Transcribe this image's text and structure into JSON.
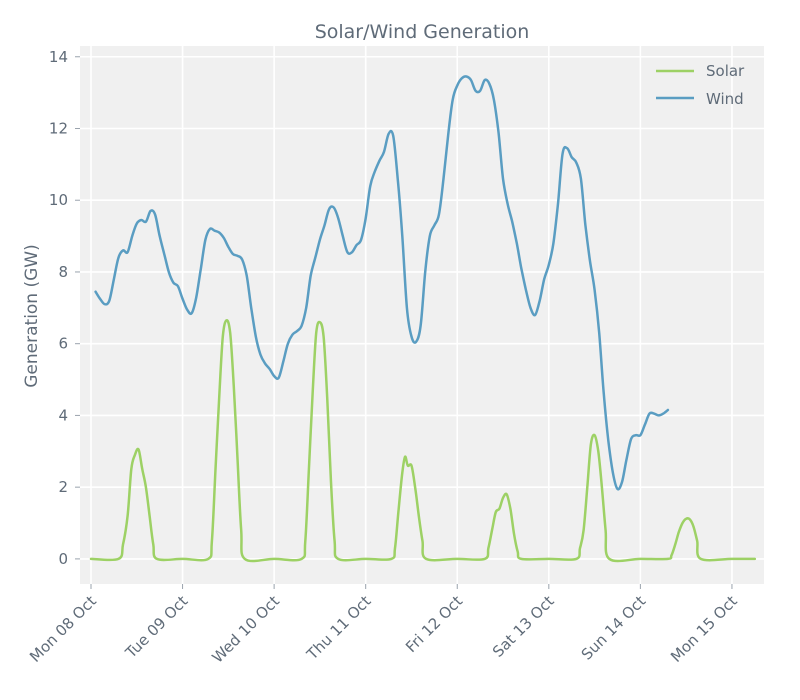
{
  "chart_data": {
    "type": "line",
    "title": "Solar/Wind Generation",
    "xlabel": "",
    "ylabel": "Generation (GW)",
    "ylim": [
      -0.7,
      14.3
    ],
    "yticks": [
      0,
      2,
      4,
      6,
      8,
      10,
      12,
      14
    ],
    "xlim": [
      -0.12,
      7.35
    ],
    "xticks": [
      {
        "x": 0,
        "label": "Mon 08 Oct"
      },
      {
        "x": 1,
        "label": "Tue 09 Oct"
      },
      {
        "x": 2,
        "label": "Wed 10 Oct"
      },
      {
        "x": 3,
        "label": "Thu 11 Oct"
      },
      {
        "x": 4,
        "label": "Fri 12 Oct"
      },
      {
        "x": 5,
        "label": "Sat 13 Oct"
      },
      {
        "x": 6,
        "label": "Sun 14 Oct"
      },
      {
        "x": 7,
        "label": "Mon 15 Oct"
      }
    ],
    "x_unit": "days from Mon 08 Oct 00:00",
    "grid": true,
    "legend": "top-right",
    "series": [
      {
        "name": "Solar",
        "color": "#9dd165",
        "points": [
          [
            0.0,
            0
          ],
          [
            0.3,
            0
          ],
          [
            0.35,
            0.4
          ],
          [
            0.4,
            1.2
          ],
          [
            0.44,
            2.5
          ],
          [
            0.48,
            2.9
          ],
          [
            0.52,
            3.05
          ],
          [
            0.56,
            2.5
          ],
          [
            0.6,
            2.0
          ],
          [
            0.64,
            1.2
          ],
          [
            0.68,
            0.4
          ],
          [
            0.72,
            0
          ],
          [
            1.0,
            0
          ],
          [
            1.28,
            0
          ],
          [
            1.32,
            0.5
          ],
          [
            1.36,
            2.5
          ],
          [
            1.4,
            4.5
          ],
          [
            1.44,
            6.2
          ],
          [
            1.48,
            6.65
          ],
          [
            1.52,
            6.3
          ],
          [
            1.56,
            4.8
          ],
          [
            1.6,
            2.8
          ],
          [
            1.64,
            0.8
          ],
          [
            1.68,
            0
          ],
          [
            2.0,
            0
          ],
          [
            2.3,
            0
          ],
          [
            2.34,
            0.5
          ],
          [
            2.38,
            2.5
          ],
          [
            2.42,
            4.6
          ],
          [
            2.46,
            6.3
          ],
          [
            2.5,
            6.6
          ],
          [
            2.54,
            6.2
          ],
          [
            2.58,
            4.5
          ],
          [
            2.62,
            2.2
          ],
          [
            2.66,
            0.5
          ],
          [
            2.7,
            0
          ],
          [
            3.0,
            0
          ],
          [
            3.28,
            0
          ],
          [
            3.32,
            0.3
          ],
          [
            3.36,
            1.4
          ],
          [
            3.4,
            2.4
          ],
          [
            3.43,
            2.85
          ],
          [
            3.46,
            2.6
          ],
          [
            3.5,
            2.6
          ],
          [
            3.54,
            2.0
          ],
          [
            3.58,
            1.2
          ],
          [
            3.62,
            0.5
          ],
          [
            3.66,
            0
          ],
          [
            4.0,
            0
          ],
          [
            4.3,
            0
          ],
          [
            4.34,
            0.3
          ],
          [
            4.38,
            0.8
          ],
          [
            4.42,
            1.3
          ],
          [
            4.46,
            1.4
          ],
          [
            4.5,
            1.7
          ],
          [
            4.54,
            1.8
          ],
          [
            4.58,
            1.4
          ],
          [
            4.62,
            0.7
          ],
          [
            4.66,
            0.2
          ],
          [
            4.7,
            0
          ],
          [
            5.0,
            0
          ],
          [
            5.3,
            0
          ],
          [
            5.34,
            0.3
          ],
          [
            5.38,
            0.8
          ],
          [
            5.42,
            2.0
          ],
          [
            5.46,
            3.2
          ],
          [
            5.5,
            3.45
          ],
          [
            5.54,
            3.0
          ],
          [
            5.58,
            2.0
          ],
          [
            5.62,
            0.8
          ],
          [
            5.66,
            0
          ],
          [
            6.0,
            0
          ],
          [
            6.3,
            0
          ],
          [
            6.34,
            0.1
          ],
          [
            6.38,
            0.4
          ],
          [
            6.42,
            0.75
          ],
          [
            6.46,
            1.0
          ],
          [
            6.5,
            1.12
          ],
          [
            6.54,
            1.1
          ],
          [
            6.58,
            0.9
          ],
          [
            6.62,
            0.5
          ],
          [
            6.66,
            0
          ],
          [
            7.0,
            0
          ],
          [
            7.25,
            0
          ]
        ]
      },
      {
        "name": "Wind",
        "color": "#5a9dc2",
        "points": [
          [
            0.05,
            7.45
          ],
          [
            0.1,
            7.25
          ],
          [
            0.15,
            7.1
          ],
          [
            0.2,
            7.2
          ],
          [
            0.25,
            7.8
          ],
          [
            0.3,
            8.4
          ],
          [
            0.35,
            8.6
          ],
          [
            0.4,
            8.55
          ],
          [
            0.45,
            9.0
          ],
          [
            0.5,
            9.35
          ],
          [
            0.55,
            9.45
          ],
          [
            0.6,
            9.4
          ],
          [
            0.65,
            9.7
          ],
          [
            0.7,
            9.6
          ],
          [
            0.75,
            9.0
          ],
          [
            0.8,
            8.5
          ],
          [
            0.85,
            8.0
          ],
          [
            0.9,
            7.7
          ],
          [
            0.95,
            7.6
          ],
          [
            1.0,
            7.25
          ],
          [
            1.05,
            6.95
          ],
          [
            1.1,
            6.85
          ],
          [
            1.15,
            7.3
          ],
          [
            1.2,
            8.1
          ],
          [
            1.25,
            8.9
          ],
          [
            1.3,
            9.2
          ],
          [
            1.35,
            9.15
          ],
          [
            1.4,
            9.1
          ],
          [
            1.45,
            8.95
          ],
          [
            1.5,
            8.7
          ],
          [
            1.55,
            8.5
          ],
          [
            1.6,
            8.45
          ],
          [
            1.65,
            8.35
          ],
          [
            1.7,
            7.9
          ],
          [
            1.75,
            7.0
          ],
          [
            1.8,
            6.2
          ],
          [
            1.85,
            5.7
          ],
          [
            1.9,
            5.45
          ],
          [
            1.95,
            5.3
          ],
          [
            2.0,
            5.1
          ],
          [
            2.05,
            5.05
          ],
          [
            2.1,
            5.5
          ],
          [
            2.15,
            6.0
          ],
          [
            2.2,
            6.25
          ],
          [
            2.25,
            6.35
          ],
          [
            2.3,
            6.5
          ],
          [
            2.35,
            7.0
          ],
          [
            2.4,
            7.9
          ],
          [
            2.45,
            8.4
          ],
          [
            2.5,
            8.9
          ],
          [
            2.55,
            9.3
          ],
          [
            2.6,
            9.75
          ],
          [
            2.65,
            9.8
          ],
          [
            2.7,
            9.5
          ],
          [
            2.75,
            9.0
          ],
          [
            2.8,
            8.55
          ],
          [
            2.85,
            8.55
          ],
          [
            2.9,
            8.75
          ],
          [
            2.95,
            8.9
          ],
          [
            3.0,
            9.5
          ],
          [
            3.05,
            10.4
          ],
          [
            3.1,
            10.8
          ],
          [
            3.15,
            11.1
          ],
          [
            3.2,
            11.35
          ],
          [
            3.25,
            11.85
          ],
          [
            3.3,
            11.8
          ],
          [
            3.35,
            10.6
          ],
          [
            3.4,
            9.0
          ],
          [
            3.45,
            7.0
          ],
          [
            3.5,
            6.2
          ],
          [
            3.55,
            6.05
          ],
          [
            3.6,
            6.5
          ],
          [
            3.65,
            8.0
          ],
          [
            3.7,
            9.0
          ],
          [
            3.75,
            9.3
          ],
          [
            3.8,
            9.6
          ],
          [
            3.85,
            10.6
          ],
          [
            3.9,
            11.8
          ],
          [
            3.95,
            12.8
          ],
          [
            4.0,
            13.2
          ],
          [
            4.05,
            13.4
          ],
          [
            4.1,
            13.45
          ],
          [
            4.15,
            13.35
          ],
          [
            4.2,
            13.05
          ],
          [
            4.25,
            13.05
          ],
          [
            4.3,
            13.35
          ],
          [
            4.35,
            13.25
          ],
          [
            4.4,
            12.8
          ],
          [
            4.45,
            11.9
          ],
          [
            4.5,
            10.6
          ],
          [
            4.55,
            9.9
          ],
          [
            4.6,
            9.4
          ],
          [
            4.65,
            8.8
          ],
          [
            4.7,
            8.1
          ],
          [
            4.75,
            7.5
          ],
          [
            4.8,
            7.0
          ],
          [
            4.85,
            6.8
          ],
          [
            4.9,
            7.2
          ],
          [
            4.95,
            7.8
          ],
          [
            5.0,
            8.2
          ],
          [
            5.05,
            8.8
          ],
          [
            5.1,
            9.9
          ],
          [
            5.15,
            11.3
          ],
          [
            5.2,
            11.45
          ],
          [
            5.25,
            11.2
          ],
          [
            5.3,
            11.05
          ],
          [
            5.35,
            10.6
          ],
          [
            5.4,
            9.3
          ],
          [
            5.45,
            8.3
          ],
          [
            5.5,
            7.5
          ],
          [
            5.55,
            6.3
          ],
          [
            5.6,
            4.6
          ],
          [
            5.65,
            3.3
          ],
          [
            5.7,
            2.4
          ],
          [
            5.75,
            1.95
          ],
          [
            5.8,
            2.15
          ],
          [
            5.85,
            2.8
          ],
          [
            5.9,
            3.35
          ],
          [
            5.95,
            3.45
          ],
          [
            6.0,
            3.45
          ],
          [
            6.05,
            3.75
          ],
          [
            6.1,
            4.05
          ],
          [
            6.15,
            4.05
          ],
          [
            6.2,
            4.0
          ],
          [
            6.25,
            4.05
          ],
          [
            6.3,
            4.15
          ]
        ]
      }
    ]
  }
}
